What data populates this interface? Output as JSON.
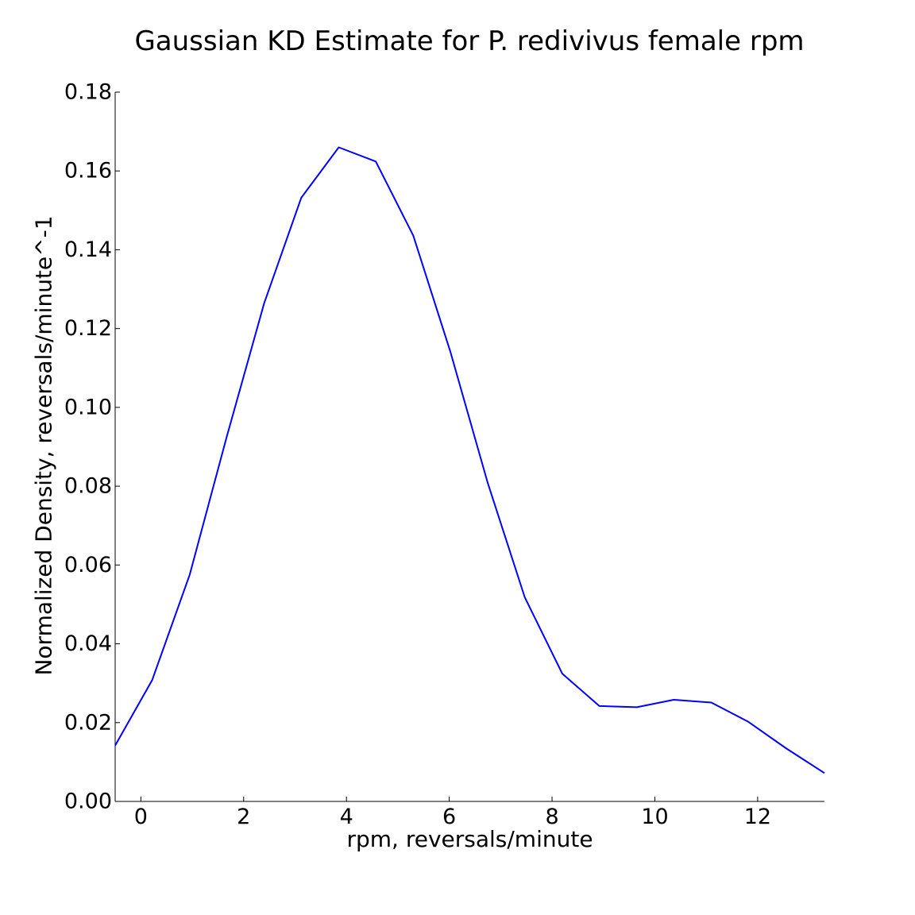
{
  "chart_data": {
    "type": "line",
    "title": "Gaussian KD Estimate for P. redivivus female rpm",
    "xlabel": "rpm, reversals/minute",
    "ylabel": "Normalized Density, reversals/minute^-1",
    "xlim": [
      -0.5,
      13.3
    ],
    "ylim": [
      0.0,
      0.18
    ],
    "xticks": [
      0,
      2,
      4,
      6,
      8,
      10,
      12
    ],
    "xtick_labels": [
      "0",
      "2",
      "4",
      "6",
      "8",
      "10",
      "12"
    ],
    "yticks": [
      0.0,
      0.02,
      0.04,
      0.06,
      0.08,
      0.1,
      0.12,
      0.14,
      0.16,
      0.18
    ],
    "ytick_labels": [
      "0.00",
      "0.02",
      "0.04",
      "0.06",
      "0.08",
      "0.10",
      "0.12",
      "0.14",
      "0.16",
      "0.18"
    ],
    "grid": false,
    "series": [
      {
        "color": "#0000ff",
        "x": [
          -0.5,
          0.22,
          0.95,
          1.67,
          2.4,
          3.12,
          3.85,
          4.57,
          5.3,
          6.02,
          6.75,
          7.47,
          8.2,
          8.92,
          9.65,
          10.37,
          11.1,
          11.82,
          12.55,
          13.3
        ],
        "y": [
          0.0142,
          0.0308,
          0.0575,
          0.0925,
          0.1265,
          0.1532,
          0.166,
          0.1624,
          0.1436,
          0.1142,
          0.0808,
          0.0518,
          0.0324,
          0.0242,
          0.0239,
          0.0258,
          0.0251,
          0.0202,
          0.0135,
          0.0072
        ]
      }
    ]
  }
}
